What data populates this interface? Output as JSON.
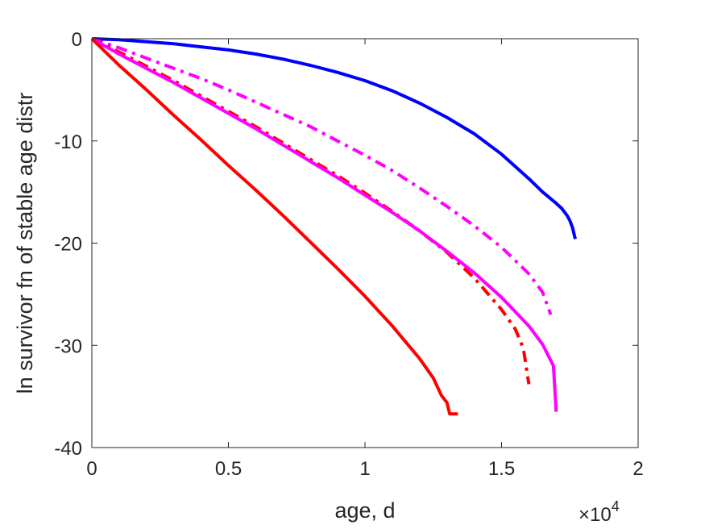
{
  "chart_data": {
    "type": "line",
    "title": "",
    "xlabel": "age, d",
    "ylabel": "ln survivor fn of stable age distr",
    "x_exponent_label": "×10",
    "x_exponent_power": "4",
    "xlim": [
      0,
      20000
    ],
    "ylim": [
      -40,
      0
    ],
    "x_ticks": [
      0,
      5000,
      10000,
      15000,
      20000
    ],
    "x_tick_labels": [
      "0",
      "0.5",
      "1",
      "1.5",
      "2"
    ],
    "y_ticks": [
      0,
      -10,
      -20,
      -30,
      -40
    ],
    "y_tick_labels": [
      "0",
      "-10",
      "-20",
      "-30",
      "-40"
    ],
    "grid": false,
    "box": true,
    "series": [
      {
        "color": "#0000ff",
        "style": "solid",
        "x": [
          0,
          1000,
          2000,
          3000,
          4000,
          5000,
          6000,
          7000,
          8000,
          9000,
          10000,
          11000,
          12000,
          13000,
          14000,
          15000,
          16000,
          16500,
          17000,
          17200,
          17400,
          17500,
          17600,
          17700
        ],
        "y": [
          0,
          -0.1,
          -0.3,
          -0.5,
          -0.8,
          -1.1,
          -1.5,
          -2.0,
          -2.6,
          -3.3,
          -4.1,
          -5.1,
          -6.3,
          -7.7,
          -9.3,
          -11.3,
          -13.7,
          -15.0,
          -16.1,
          -16.6,
          -17.3,
          -17.8,
          -18.5,
          -19.6
        ]
      },
      {
        "color": "#ff00ff",
        "style": "dashdot",
        "x": [
          0,
          1000,
          2000,
          3000,
          4000,
          5000,
          6000,
          7000,
          8000,
          9000,
          10000,
          11000,
          12000,
          13000,
          14000,
          15000,
          16000,
          16500,
          16800
        ],
        "y": [
          0,
          -0.9,
          -1.9,
          -2.9,
          -3.9,
          -5.0,
          -6.2,
          -7.4,
          -8.6,
          -10.0,
          -11.4,
          -12.9,
          -14.6,
          -16.4,
          -18.3,
          -20.4,
          -23.0,
          -24.8,
          -27.0
        ]
      },
      {
        "color": "#ff0000",
        "style": "dashdot",
        "x": [
          0,
          1000,
          2000,
          3000,
          4000,
          5000,
          6000,
          7000,
          8000,
          9000,
          10000,
          11000,
          12000,
          13000,
          14000,
          15000,
          15500,
          15800,
          16000
        ],
        "y": [
          0,
          -1.3,
          -2.7,
          -4.1,
          -5.6,
          -7.1,
          -8.6,
          -10.2,
          -11.8,
          -13.4,
          -15.1,
          -16.9,
          -18.8,
          -20.9,
          -23.4,
          -26.5,
          -28.4,
          -30.3,
          -33.8
        ]
      },
      {
        "color": "#ff00ff",
        "style": "solid",
        "x": [
          0,
          1000,
          2000,
          3000,
          4000,
          5000,
          6000,
          7000,
          8000,
          9000,
          10000,
          11000,
          12000,
          13000,
          14000,
          15000,
          16000,
          16500,
          16900,
          17000
        ],
        "y": [
          0,
          -1.5,
          -2.9,
          -4.3,
          -5.8,
          -7.3,
          -8.8,
          -10.4,
          -12.0,
          -13.6,
          -15.3,
          -17.0,
          -18.8,
          -20.8,
          -22.9,
          -25.3,
          -28.1,
          -29.9,
          -32.0,
          -36.5
        ]
      },
      {
        "color": "#ff0000",
        "style": "solid",
        "x": [
          0,
          1000,
          2000,
          3000,
          4000,
          5000,
          6000,
          7000,
          8000,
          9000,
          10000,
          11000,
          12000,
          12500,
          12800,
          13000,
          13100,
          13400
        ],
        "y": [
          0,
          -2.6,
          -5.0,
          -7.5,
          -9.9,
          -12.4,
          -14.8,
          -17.3,
          -19.9,
          -22.5,
          -25.2,
          -28.1,
          -31.3,
          -33.2,
          -34.9,
          -35.6,
          -36.7,
          -36.7
        ]
      }
    ]
  }
}
